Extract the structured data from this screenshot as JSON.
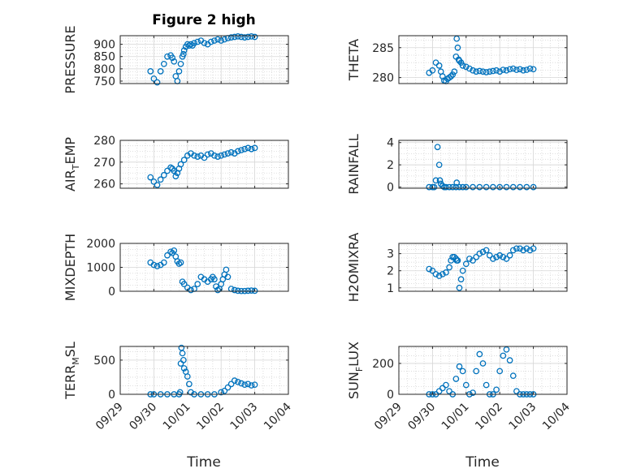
{
  "figure": {
    "title": "Figure 2 high",
    "xlabel": "Time",
    "xticks": [
      "09/29",
      "09/30",
      "10/01",
      "10/02",
      "10/03",
      "10/04"
    ],
    "marker_color": "#0072bd",
    "grid_color": "#d6d6d6"
  },
  "chart_data": [
    {
      "type": "scatter",
      "ylabel": "PRESSURE",
      "yticks": [
        "750",
        "800",
        "850",
        "900"
      ],
      "ylim": [
        740,
        935
      ],
      "x": [
        0.9,
        1.0,
        1.1,
        1.2,
        1.3,
        1.4,
        1.5,
        1.55,
        1.6,
        1.65,
        1.7,
        1.75,
        1.8,
        1.85,
        1.88,
        1.9,
        1.95,
        2.0,
        2.05,
        2.1,
        2.15,
        2.2,
        2.3,
        2.4,
        2.5,
        2.6,
        2.7,
        2.8,
        2.9,
        3.0,
        3.1,
        3.2,
        3.3,
        3.4,
        3.5,
        3.6,
        3.7,
        3.8,
        3.9,
        4.0
      ],
      "y": [
        790,
        760,
        745,
        790,
        820,
        850,
        855,
        845,
        830,
        770,
        750,
        790,
        820,
        850,
        860,
        875,
        890,
        900,
        895,
        900,
        895,
        905,
        910,
        915,
        905,
        900,
        910,
        915,
        920,
        915,
        920,
        925,
        928,
        930,
        932,
        930,
        928,
        930,
        932,
        930
      ]
    },
    {
      "type": "scatter",
      "ylabel": "THETA",
      "yticks": [
        "280",
        "285"
      ],
      "ylim": [
        279,
        287
      ],
      "x": [
        0.9,
        1.0,
        1.1,
        1.2,
        1.25,
        1.3,
        1.35,
        1.4,
        1.45,
        1.5,
        1.55,
        1.6,
        1.65,
        1.7,
        1.72,
        1.75,
        1.78,
        1.8,
        1.85,
        1.9,
        2.0,
        2.1,
        2.2,
        2.3,
        2.4,
        2.5,
        2.6,
        2.7,
        2.8,
        2.9,
        3.0,
        3.1,
        3.2,
        3.3,
        3.4,
        3.5,
        3.6,
        3.7,
        3.8,
        3.9,
        4.0
      ],
      "y": [
        280.8,
        281.2,
        282.5,
        282.0,
        281.0,
        280.2,
        279.5,
        279.4,
        279.8,
        280.0,
        280.2,
        280.5,
        281.0,
        283.5,
        286.5,
        285.0,
        283.0,
        282.8,
        282.5,
        282.0,
        281.8,
        281.5,
        281.2,
        281.0,
        281.1,
        281.0,
        280.9,
        281.0,
        281.1,
        281.2,
        281.0,
        281.3,
        281.2,
        281.4,
        281.5,
        281.3,
        281.4,
        281.2,
        281.3,
        281.5,
        281.4
      ]
    },
    {
      "type": "scatter",
      "ylabel": "AIR_TEMP",
      "yticks": [
        "260",
        "270",
        "280"
      ],
      "ylim": [
        258,
        280
      ],
      "x": [
        0.9,
        1.0,
        1.1,
        1.2,
        1.3,
        1.4,
        1.5,
        1.55,
        1.6,
        1.65,
        1.7,
        1.75,
        1.8,
        1.9,
        2.0,
        2.1,
        2.2,
        2.3,
        2.4,
        2.5,
        2.6,
        2.7,
        2.8,
        2.9,
        3.0,
        3.1,
        3.2,
        3.3,
        3.4,
        3.5,
        3.6,
        3.7,
        3.8,
        3.9,
        4.0
      ],
      "y": [
        263,
        261,
        259.5,
        262,
        264,
        266,
        267.5,
        267,
        266,
        263.5,
        265,
        267,
        269,
        271,
        273,
        274,
        273,
        272.5,
        273,
        272,
        273.5,
        274,
        273,
        272.5,
        273,
        273.5,
        274,
        274.5,
        274,
        275,
        275.5,
        276,
        276.5,
        276,
        276.5
      ]
    },
    {
      "type": "scatter",
      "ylabel": "RAINFALL",
      "yticks": [
        "0",
        "2",
        "4"
      ],
      "ylim": [
        -0.1,
        4.2
      ],
      "x": [
        0.9,
        1.0,
        1.05,
        1.1,
        1.15,
        1.2,
        1.22,
        1.25,
        1.3,
        1.35,
        1.4,
        1.5,
        1.6,
        1.7,
        1.72,
        1.8,
        1.9,
        2.0,
        2.2,
        2.4,
        2.6,
        2.8,
        3.0,
        3.2,
        3.4,
        3.6,
        3.8,
        4.0
      ],
      "y": [
        0,
        0,
        0,
        0.6,
        3.6,
        2.0,
        0.6,
        0.3,
        0.1,
        0,
        0,
        0,
        0,
        0,
        0.4,
        0,
        0,
        0,
        0,
        0,
        0,
        0,
        0,
        0,
        0,
        0,
        0,
        0
      ]
    },
    {
      "type": "scatter",
      "ylabel": "MIXDEPTH",
      "yticks": [
        "0",
        "1000",
        "2000"
      ],
      "ylim": [
        0,
        2000
      ],
      "x": [
        0.9,
        1.0,
        1.1,
        1.2,
        1.3,
        1.4,
        1.5,
        1.55,
        1.6,
        1.65,
        1.7,
        1.75,
        1.8,
        1.85,
        1.9,
        2.0,
        2.1,
        2.2,
        2.3,
        2.4,
        2.5,
        2.6,
        2.7,
        2.75,
        2.8,
        2.85,
        2.9,
        2.95,
        3.0,
        3.05,
        3.1,
        3.15,
        3.2,
        3.3,
        3.4,
        3.5,
        3.6,
        3.7,
        3.8,
        3.9,
        4.0
      ],
      "y": [
        1200,
        1100,
        1050,
        1100,
        1200,
        1500,
        1650,
        1600,
        1700,
        1450,
        1250,
        1150,
        1200,
        400,
        300,
        150,
        50,
        100,
        300,
        600,
        500,
        400,
        500,
        600,
        500,
        200,
        50,
        100,
        300,
        500,
        700,
        900,
        600,
        100,
        50,
        20,
        10,
        10,
        20,
        30,
        20
      ]
    },
    {
      "type": "scatter",
      "ylabel": "H2OMIXRA",
      "yticks": [
        "1",
        "2",
        "3"
      ],
      "ylim": [
        0.8,
        3.6
      ],
      "x": [
        0.9,
        1.0,
        1.1,
        1.2,
        1.3,
        1.4,
        1.5,
        1.55,
        1.6,
        1.65,
        1.7,
        1.72,
        1.75,
        1.8,
        1.85,
        1.9,
        2.0,
        2.1,
        2.2,
        2.3,
        2.4,
        2.5,
        2.6,
        2.7,
        2.8,
        2.9,
        3.0,
        3.1,
        3.2,
        3.3,
        3.4,
        3.5,
        3.6,
        3.7,
        3.8,
        3.9,
        4.0
      ],
      "y": [
        2.1,
        2.0,
        1.8,
        1.7,
        1.8,
        1.9,
        2.2,
        2.6,
        2.8,
        2.8,
        2.7,
        2.6,
        2.6,
        1.0,
        1.5,
        2.0,
        2.4,
        2.7,
        2.6,
        2.8,
        3.0,
        3.1,
        3.2,
        2.9,
        2.7,
        2.8,
        2.9,
        2.8,
        2.7,
        2.9,
        3.2,
        3.3,
        3.3,
        3.2,
        3.3,
        3.2,
        3.3
      ]
    },
    {
      "type": "scatter",
      "ylabel": "TERR_MSL",
      "yticks": [
        "0",
        "500"
      ],
      "ylim": [
        0,
        700
      ],
      "x": [
        0.9,
        1.0,
        1.2,
        1.4,
        1.6,
        1.75,
        1.78,
        1.8,
        1.82,
        1.85,
        1.88,
        1.9,
        1.95,
        2.0,
        2.05,
        2.1,
        2.2,
        2.4,
        2.6,
        2.8,
        3.0,
        3.1,
        3.2,
        3.3,
        3.4,
        3.5,
        3.6,
        3.7,
        3.8,
        3.9,
        4.0
      ],
      "y": [
        0,
        0,
        0,
        0,
        0,
        0,
        30,
        450,
        680,
        600,
        500,
        380,
        330,
        260,
        150,
        30,
        0,
        0,
        0,
        0,
        30,
        50,
        100,
        150,
        200,
        180,
        160,
        140,
        150,
        130,
        140
      ]
    },
    {
      "type": "scatter",
      "ylabel": "SUN_FLUX",
      "yticks": [
        "0",
        "200"
      ],
      "ylim": [
        0,
        310
      ],
      "x": [
        0.9,
        1.0,
        1.1,
        1.2,
        1.3,
        1.4,
        1.5,
        1.6,
        1.7,
        1.8,
        1.9,
        2.0,
        2.1,
        2.2,
        2.3,
        2.4,
        2.5,
        2.6,
        2.7,
        2.8,
        2.9,
        3.0,
        3.1,
        3.2,
        3.3,
        3.4,
        3.5,
        3.6,
        3.7,
        3.8,
        3.9,
        4.0
      ],
      "y": [
        0,
        0,
        0,
        20,
        40,
        60,
        20,
        0,
        100,
        180,
        150,
        60,
        0,
        10,
        150,
        260,
        200,
        60,
        0,
        0,
        30,
        150,
        250,
        290,
        220,
        120,
        20,
        0,
        0,
        0,
        0,
        0
      ]
    }
  ]
}
